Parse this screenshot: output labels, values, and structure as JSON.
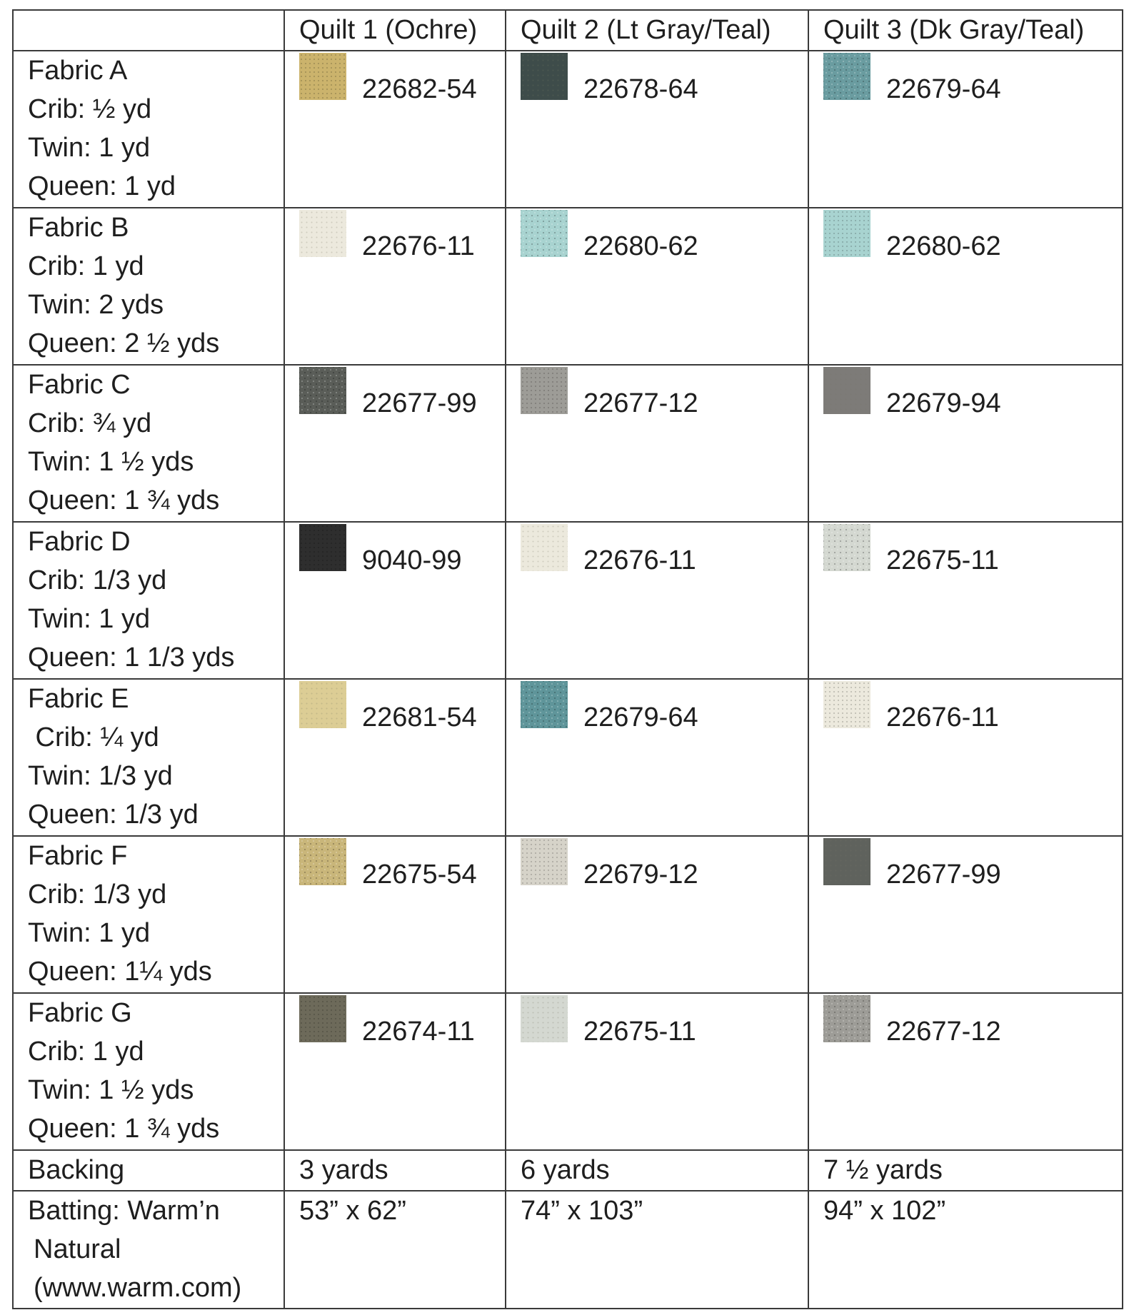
{
  "header": {
    "corner": "",
    "quilt1": "Quilt 1 (Ochre)",
    "quilt2": "Quilt 2 (Lt Gray/Teal)",
    "quilt3": "Quilt 3 (Dk Gray/Teal)"
  },
  "fabrics": [
    {
      "name": "Fabric A",
      "crib": "Crib: ½ yd",
      "twin": "Twin: 1 yd",
      "queen": "Queen: 1 yd",
      "q1": {
        "code": "22682-54",
        "color": "#cbb36c"
      },
      "q2": {
        "code": "22678-64",
        "color": "#3e4c4a"
      },
      "q3": {
        "code": "22679-64",
        "color": "#6a9ca0"
      }
    },
    {
      "name": "Fabric B",
      "crib": "Crib: 1 yd",
      "twin": "Twin: 2 yds",
      "queen": "Queen: 2 ½ yds",
      "q1": {
        "code": "22676-11",
        "color": "#ece9dd"
      },
      "q2": {
        "code": "22680-62",
        "color": "#a8d3d0"
      },
      "q3": {
        "code": "22680-62",
        "color": "#a8d3d0"
      }
    },
    {
      "name": "Fabric C",
      "crib": "Crib: ¾ yd",
      "twin": "Twin: 1 ½ yds",
      "queen": "Queen: 1 ¾ yds",
      "q1": {
        "code": "22677-99",
        "color": "#5a5d58"
      },
      "q2": {
        "code": "22677-12",
        "color": "#9d9c97"
      },
      "q3": {
        "code": "22679-94",
        "color": "#7d7b78"
      }
    },
    {
      "name": "Fabric D",
      "crib": "Crib: 1/3 yd",
      "twin": "Twin: 1 yd",
      "queen": "Queen: 1 1/3 yds",
      "q1": {
        "code": "9040-99",
        "color": "#2e2e2e"
      },
      "q2": {
        "code": "22676-11",
        "color": "#ece9dd"
      },
      "q3": {
        "code": "22675-11",
        "color": "#d4d8d1"
      }
    },
    {
      "name": "Fabric E",
      "crib": " Crib: ¼ yd",
      "twin": "Twin: 1/3 yd",
      "queen": "Queen: 1/3 yd",
      "q1": {
        "code": "22681-54",
        "color": "#dccd95"
      },
      "q2": {
        "code": "22679-64",
        "color": "#5f959a"
      },
      "q3": {
        "code": "22676-11",
        "color": "#ece9dd"
      }
    },
    {
      "name": "Fabric F",
      "crib": "Crib: 1/3 yd",
      "twin": "Twin: 1 yd",
      "queen": "Queen: 1¼ yds",
      "q1": {
        "code": "22675-54",
        "color": "#c9b67a"
      },
      "q2": {
        "code": "22679-12",
        "color": "#d6d3c9"
      },
      "q3": {
        "code": "22677-99",
        "color": "#5f625d"
      }
    },
    {
      "name": "Fabric G",
      "crib": "Crib: 1 yd",
      "twin": "Twin: 1 ½ yds",
      "queen": "Queen: 1 ¾ yds",
      "q1": {
        "code": "22674-11",
        "color": "#6d6a5a"
      },
      "q2": {
        "code": "22675-11",
        "color": "#d4d8d1"
      },
      "q3": {
        "code": "22677-12",
        "color": "#9d9c97"
      }
    }
  ],
  "backing": {
    "label": "Backing",
    "q1": "3 yards",
    "q2": "6 yards",
    "q3": "7 ½ yards"
  },
  "batting": {
    "line1": "Batting: Warm’n",
    "line2": " Natural",
    "line3": " (www.warm.com)",
    "q1": "53” x 62”",
    "q2": "74” x 103”",
    "q3": "94” x 102”"
  }
}
